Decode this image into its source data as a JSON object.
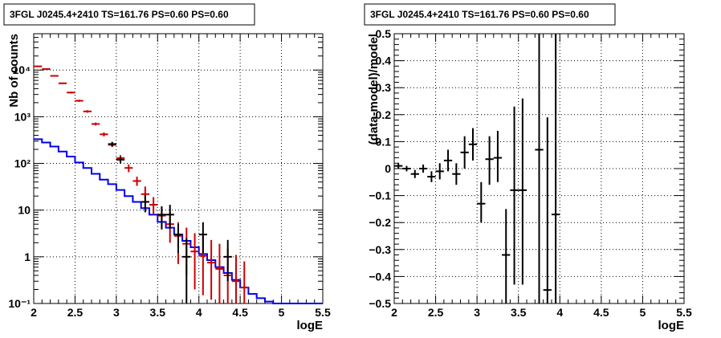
{
  "colors": {
    "data": "#000000",
    "model": "#cc0000",
    "source": "#0000ee",
    "frame": "#000000"
  },
  "chart_data": [
    {
      "type": "scatter",
      "title": "3FGL J0245.4+2410 TS=161.76 PS=0.60 PS=0.60",
      "xlabel": "logE",
      "ylabel": "Nb of counts",
      "xlim": [
        2,
        5.5
      ],
      "ylim": [
        0.1,
        60000
      ],
      "yscale": "log",
      "grid": true,
      "x_ticks": [
        "2",
        "2.5",
        "3",
        "3.5",
        "4",
        "4.5",
        "5",
        "5.5"
      ],
      "y_ticks": [
        "10⁻¹",
        "1",
        "10",
        "10²",
        "10³",
        "10⁴"
      ],
      "x_tick_values": [
        2,
        2.5,
        3,
        3.5,
        4,
        4.5,
        5,
        5.5
      ],
      "y_tick_values": [
        0.1,
        1,
        10,
        100,
        1000,
        10000
      ],
      "bin_width": 0.1,
      "series": [
        {
          "kind": "step",
          "x": [
            2.0,
            2.1,
            2.2,
            2.3,
            2.4,
            2.5,
            2.6,
            2.7,
            2.8,
            2.9,
            3.0,
            3.1,
            3.2,
            3.3,
            3.4,
            3.5,
            3.6,
            3.7,
            3.8,
            3.9,
            4.0,
            4.1,
            4.2,
            4.3,
            4.4,
            4.5,
            4.6,
            4.7,
            4.8,
            4.9,
            5.0,
            5.1,
            5.2,
            5.3,
            5.4
          ],
          "y": [
            330,
            280,
            230,
            180,
            140,
            105,
            80,
            60,
            45,
            36,
            27,
            20,
            15,
            11,
            8,
            5.6,
            4.2,
            3,
            2.2,
            1.6,
            1.15,
            0.85,
            0.6,
            0.45,
            0.32,
            0.22,
            0.16,
            0.13,
            0.11,
            0.1,
            0.1,
            0.1,
            0.1,
            0.1,
            0.1
          ]
        },
        {
          "kind": "errorbar",
          "x": [
            2.05,
            2.15,
            2.25,
            2.35,
            2.45,
            2.55,
            2.65,
            2.75,
            2.85,
            2.95,
            3.05,
            3.15,
            3.25,
            3.35,
            3.45,
            3.55,
            3.65,
            3.75,
            3.85,
            3.95,
            4.05,
            4.15,
            4.25,
            4.35,
            4.45,
            4.55
          ],
          "y": [
            12000,
            10500,
            7500,
            5200,
            3300,
            2200,
            1300,
            700,
            420,
            250,
            130,
            80,
            42,
            22,
            13,
            7.6,
            5,
            2.8,
            1.9,
            1.3,
            1.05,
            0.75,
            0.55,
            0.4,
            0.3,
            0.22
          ],
          "ylow": [
            11600,
            10200,
            7300,
            5000,
            3150,
            2080,
            1220,
            650,
            380,
            225,
            112,
            65,
            33,
            14,
            8,
            3.8,
            2,
            0.7,
            0.4,
            0.2,
            0.15,
            0.12,
            0.1,
            0.1,
            0.1,
            0.1
          ],
          "yhigh": [
            12400,
            10800,
            7700,
            5400,
            3450,
            2320,
            1380,
            750,
            460,
            280,
            150,
            95,
            52,
            32,
            19,
            12,
            9,
            5.5,
            4.2,
            3.2,
            2.8,
            2.3,
            1.9,
            1.5,
            1.1,
            0.8
          ]
        },
        {
          "kind": "errorbar",
          "x": [
            2.95,
            3.05,
            3.35,
            3.55,
            3.65,
            3.75,
            3.85,
            4.05,
            4.35
          ],
          "y": [
            260,
            120,
            15,
            8,
            8,
            3,
            1,
            3,
            1
          ],
          "ylow": [
            230,
            100,
            9,
            4,
            4,
            1.2,
            0.1,
            1.2,
            0.3
          ],
          "yhigh": [
            290,
            140,
            21,
            12,
            13,
            5,
            2.5,
            5.5,
            2.3
          ]
        }
      ]
    },
    {
      "type": "scatter",
      "title": "3FGL J0245.4+2410 TS=161.76 PS=0.60 PS=0.60",
      "xlabel": "logE",
      "ylabel": "(data-model)/model",
      "xlim": [
        2,
        5.5
      ],
      "ylim": [
        -0.5,
        0.5
      ],
      "grid": true,
      "x_ticks": [
        "2",
        "2.5",
        "3",
        "3.5",
        "4",
        "4.5",
        "5",
        "5.5"
      ],
      "y_ticks": [
        "−0.5",
        "−0.4",
        "−0.3",
        "−0.2",
        "−0.1",
        "0",
        "0.1",
        "0.2",
        "0.3",
        "0.4",
        "0.5"
      ],
      "x_tick_values": [
        2,
        2.5,
        3,
        3.5,
        4,
        4.5,
        5,
        5.5
      ],
      "y_tick_values": [
        -0.5,
        -0.4,
        -0.3,
        -0.2,
        -0.1,
        0,
        0.1,
        0.2,
        0.3,
        0.4,
        0.5
      ],
      "bin_width": 0.1,
      "series": [
        {
          "kind": "errorbar",
          "x": [
            2.05,
            2.15,
            2.25,
            2.35,
            2.45,
            2.55,
            2.65,
            2.75,
            2.85,
            2.95,
            3.05,
            3.25,
            3.35,
            3.45,
            3.55,
            3.75,
            3.85,
            3.95
          ],
          "y": [
            0.01,
            0.0,
            -0.02,
            0.0,
            -0.03,
            -0.01,
            0.03,
            -0.02,
            0.06,
            0.09,
            -0.13,
            0.04,
            -0.32,
            -0.08,
            -0.08,
            0.07,
            -0.45,
            -0.17
          ],
          "ylow": [
            0.0,
            -0.01,
            -0.035,
            -0.015,
            -0.05,
            -0.04,
            -0.01,
            -0.06,
            0.0,
            0.03,
            -0.2,
            -0.05,
            -0.5,
            -0.43,
            -0.43,
            -0.5,
            -0.5,
            -0.5
          ],
          "yhigh": [
            0.02,
            0.01,
            -0.005,
            0.015,
            -0.01,
            0.02,
            0.07,
            0.02,
            0.12,
            0.15,
            -0.05,
            0.14,
            -0.15,
            0.23,
            0.26,
            0.5,
            0.19,
            0.5
          ]
        },
        {
          "kind": "errorbar",
          "x": [
            3.15
          ],
          "y": [
            0.035
          ],
          "ylow": [
            -0.06
          ],
          "yhigh": [
            0.12
          ]
        }
      ]
    }
  ]
}
